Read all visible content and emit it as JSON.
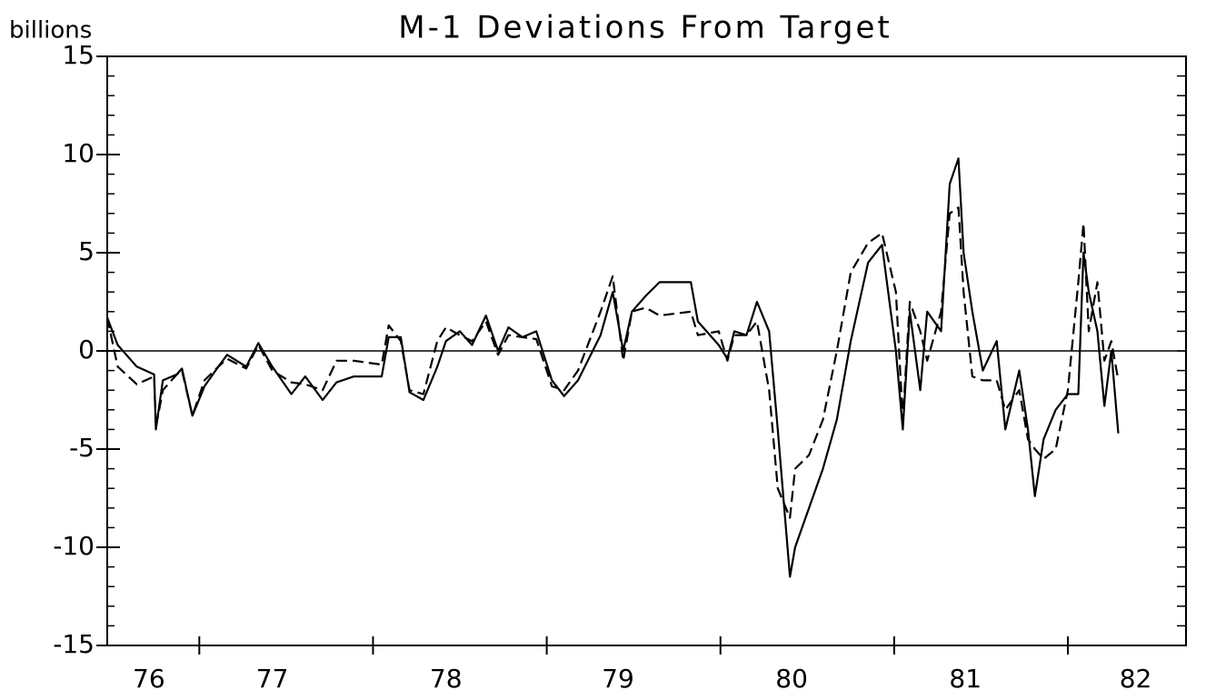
{
  "chart_data": {
    "type": "line",
    "title": "M-1 Deviations From Target",
    "ylabel": "billions",
    "x": [
      76.47,
      76.53,
      76.64,
      76.74,
      76.75,
      76.79,
      76.87,
      76.9,
      76.96,
      77.03,
      77.11,
      77.16,
      77.27,
      77.34,
      77.42,
      77.53,
      77.61,
      77.71,
      77.79,
      77.89,
      78.05,
      78.09,
      78.16,
      78.21,
      78.29,
      78.37,
      78.42,
      78.5,
      78.57,
      78.65,
      78.72,
      78.78,
      78.86,
      78.94,
      79.03,
      79.1,
      79.18,
      79.31,
      79.38,
      79.44,
      79.49,
      79.57,
      79.65,
      79.83,
      79.87,
      79.99,
      80.04,
      80.08,
      80.15,
      80.21,
      80.28,
      80.33,
      80.4,
      80.43,
      80.51,
      80.59,
      80.67,
      80.75,
      80.85,
      80.93,
      81.01,
      81.05,
      81.09,
      81.15,
      81.19,
      81.27,
      81.32,
      81.37,
      81.4,
      81.45,
      81.51,
      81.59,
      81.64,
      81.72,
      81.77,
      81.81,
      81.86,
      81.93,
      82.0,
      82.06,
      82.09,
      82.12,
      82.17,
      82.21,
      82.25,
      82.29
    ],
    "series": [
      {
        "color": "#000000",
        "dashed": false,
        "values": [
          1.7,
          0.3,
          -0.8,
          -1.2,
          -4.0,
          -1.5,
          -1.2,
          -0.9,
          -3.3,
          -1.8,
          -0.8,
          -0.2,
          -0.8,
          0.4,
          -0.8,
          -2.2,
          -1.3,
          -2.5,
          -1.6,
          -1.3,
          -1.3,
          0.7,
          0.7,
          -2.1,
          -2.5,
          -0.8,
          0.5,
          1.0,
          0.3,
          1.8,
          0,
          1.2,
          0.7,
          1.0,
          -1.5,
          -2.3,
          -1.5,
          0.8,
          3.0,
          0,
          2.0,
          2.8,
          3.5,
          3.5,
          1.5,
          0.3,
          -0.4,
          1.0,
          0.8,
          2.5,
          1.0,
          -4.0,
          -11.5,
          -10.0,
          -8.0,
          -6.0,
          -3.5,
          0.5,
          4.5,
          5.4,
          0,
          -4.0,
          2.0,
          -2.0,
          2.0,
          1.0,
          8.5,
          9.8,
          5.0,
          2.0,
          -1.0,
          0.5,
          -4.0,
          -1.0,
          -4.0,
          -7.4,
          -4.5,
          -3.0,
          -2.2,
          -2.2,
          5.0,
          3.0,
          1.0,
          -2.8,
          0,
          -4.2
        ]
      },
      {
        "color": "#000000",
        "dashed": true,
        "values": [
          1.7,
          -0.8,
          -1.7,
          -1.3,
          -3.9,
          -2.0,
          -1.2,
          -1.0,
          -3.3,
          -1.5,
          -0.8,
          -0.4,
          -0.9,
          0.3,
          -1.0,
          -1.6,
          -1.7,
          -2.0,
          -0.5,
          -0.5,
          -0.7,
          1.3,
          0.5,
          -2.0,
          -2.2,
          0.5,
          1.2,
          0.8,
          0.5,
          1.5,
          -0.2,
          0.8,
          0.7,
          0.6,
          -1.8,
          -2.0,
          -1.0,
          2.0,
          3.8,
          -0.5,
          2.0,
          2.2,
          1.8,
          2.0,
          0.8,
          1.0,
          -0.5,
          0.8,
          0.8,
          1.5,
          -2.0,
          -7.0,
          -8.5,
          -6.0,
          -5.3,
          -3.5,
          0,
          4.0,
          5.5,
          6.0,
          3.0,
          -3.5,
          2.5,
          1.0,
          -0.5,
          2.0,
          7.0,
          7.3,
          3.0,
          -1.3,
          -1.5,
          -1.5,
          -3.0,
          -2.0,
          -4.5,
          -5.0,
          -5.5,
          -5.0,
          -2.0,
          3.5,
          6.5,
          1.0,
          3.5,
          -0.5,
          0.5,
          -1.5
        ]
      }
    ],
    "xlim": [
      76.47,
      82.68
    ],
    "xticks": [
      {
        "value": 76.71,
        "label": "76"
      },
      {
        "value": 77.42,
        "label": "77"
      },
      {
        "value": 78.42,
        "label": "78"
      },
      {
        "value": 79.41,
        "label": "79"
      },
      {
        "value": 80.41,
        "label": "80"
      },
      {
        "value": 81.41,
        "label": "81"
      },
      {
        "value": 82.39,
        "label": "82"
      }
    ],
    "xtick_marks": [
      77,
      78,
      79,
      80,
      81,
      82
    ],
    "ylim": [
      -15,
      15
    ],
    "yticks": [
      -15,
      -10,
      -5,
      0,
      5,
      10,
      15
    ],
    "yminor_step": 1,
    "zero_line": true,
    "grid": false
  }
}
